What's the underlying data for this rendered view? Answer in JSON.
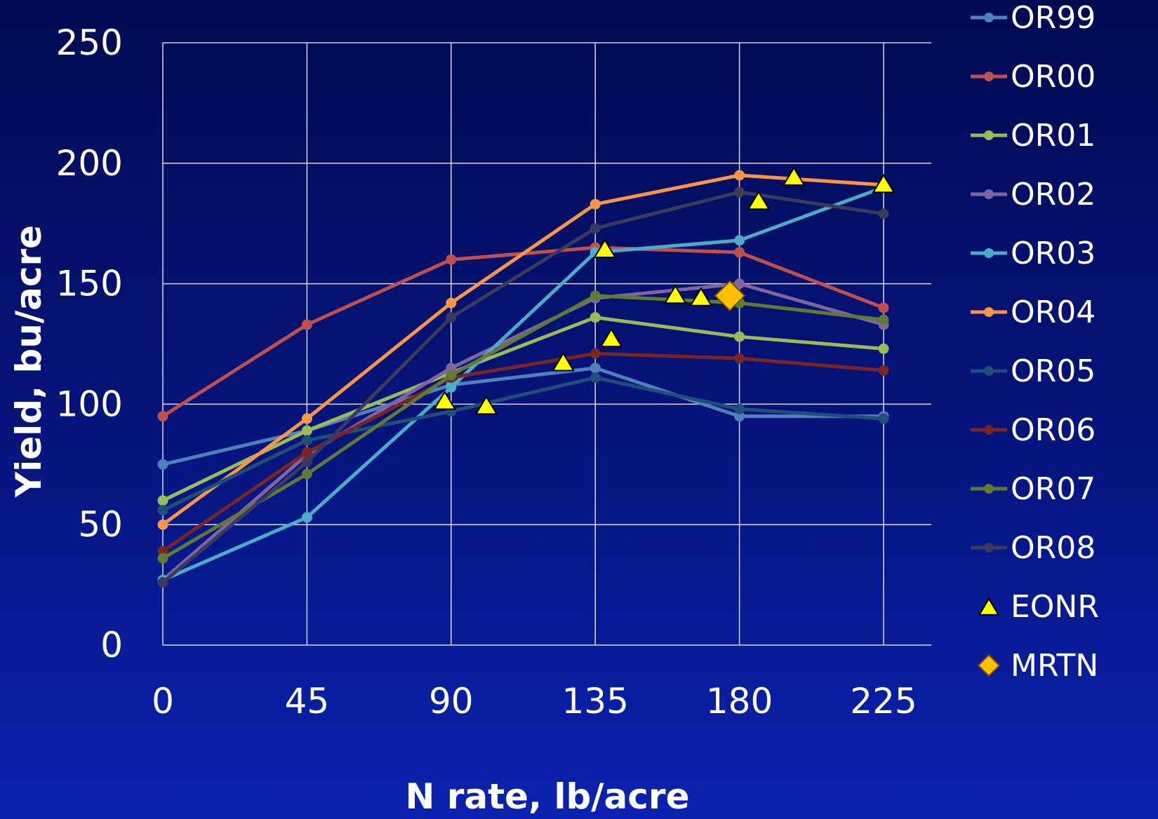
{
  "chart_data": {
    "type": "line",
    "xlabel": "N rate, lb/acre",
    "ylabel": "Yield, bu/acre",
    "x": [
      0,
      45,
      90,
      135,
      180,
      225
    ],
    "xlim": [
      0,
      225
    ],
    "ylim": [
      0,
      250
    ],
    "x_ticks": [
      "0",
      "45",
      "90",
      "135",
      "180",
      "225"
    ],
    "y_ticks": [
      "0",
      "50",
      "100",
      "150",
      "200",
      "250"
    ],
    "grid": true,
    "legend_position": "right",
    "series": [
      {
        "name": "OR99",
        "color": "#4f81bd",
        "values": [
          75,
          89,
          108,
          115,
          95,
          95
        ]
      },
      {
        "name": "OR00",
        "color": "#c0504d",
        "values": [
          95,
          133,
          160,
          165,
          163,
          140
        ]
      },
      {
        "name": "OR01",
        "color": "#9bbb59",
        "values": [
          60,
          89,
          113,
          136,
          128,
          123
        ]
      },
      {
        "name": "OR02",
        "color": "#8064a2",
        "values": [
          27,
          79,
          115,
          144,
          150,
          133
        ]
      },
      {
        "name": "OR03",
        "color": "#4bacc6",
        "values": [
          27,
          53,
          107,
          163,
          168,
          190
        ]
      },
      {
        "name": "OR04",
        "color": "#f79646",
        "values": [
          50,
          94,
          142,
          183,
          195,
          191
        ]
      },
      {
        "name": "OR05",
        "color": "#1f4e79",
        "values": [
          56,
          85,
          97,
          111,
          98,
          94
        ]
      },
      {
        "name": "OR06",
        "color": "#7a2424",
        "values": [
          39,
          80,
          111,
          121,
          119,
          114
        ]
      },
      {
        "name": "OR07",
        "color": "#5f7a32",
        "values": [
          36,
          71,
          112,
          145,
          142,
          135
        ]
      },
      {
        "name": "OR08",
        "color": "#3c3a5c",
        "values": [
          26,
          76,
          136,
          173,
          188,
          179
        ]
      }
    ],
    "eonr": {
      "name": "EONR",
      "color": "#ffff00",
      "points": [
        {
          "x": 88,
          "y": 101
        },
        {
          "x": 101,
          "y": 99
        },
        {
          "x": 125,
          "y": 117
        },
        {
          "x": 140,
          "y": 127
        },
        {
          "x": 138,
          "y": 164
        },
        {
          "x": 160,
          "y": 145
        },
        {
          "x": 168,
          "y": 144
        },
        {
          "x": 186,
          "y": 184
        },
        {
          "x": 197,
          "y": 194
        },
        {
          "x": 225,
          "y": 191
        }
      ]
    },
    "mrtn": {
      "name": "MRTN",
      "color": "#ffc000",
      "points": [
        {
          "x": 177,
          "y": 145
        }
      ]
    }
  }
}
